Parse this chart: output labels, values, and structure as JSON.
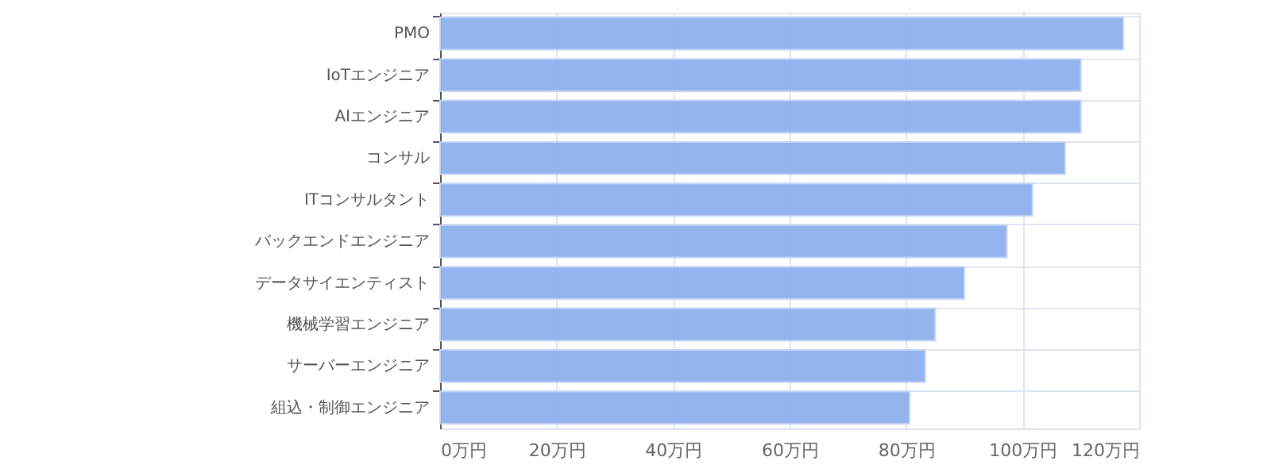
{
  "chart_data": {
    "type": "bar",
    "orientation": "horizontal",
    "categories": [
      "PMO",
      "IoTエンジニア",
      "AIエンジニア",
      "コンサル",
      "ITコンサルタント",
      "バックエンドエンジニア",
      "データサイエンティスト",
      "機械学習エンジニア",
      "サーバーエンジニア",
      "組込・制御エンジニア"
    ],
    "values": [
      117.3,
      110,
      110,
      107.3,
      101.7,
      97.3,
      90,
      85,
      83.3,
      80.6
    ],
    "color": "#8fb0ee",
    "xlim": [
      0,
      120
    ],
    "xticks": [
      {
        "value": 0,
        "label": "0万円"
      },
      {
        "value": 20,
        "label": "20万円"
      },
      {
        "value": 40,
        "label": "40万円"
      },
      {
        "value": 60,
        "label": "60万円"
      },
      {
        "value": 80,
        "label": "80万円"
      },
      {
        "value": 100,
        "label": "100万円"
      },
      {
        "value": 120,
        "label": "120万円"
      }
    ],
    "grid": true
  }
}
